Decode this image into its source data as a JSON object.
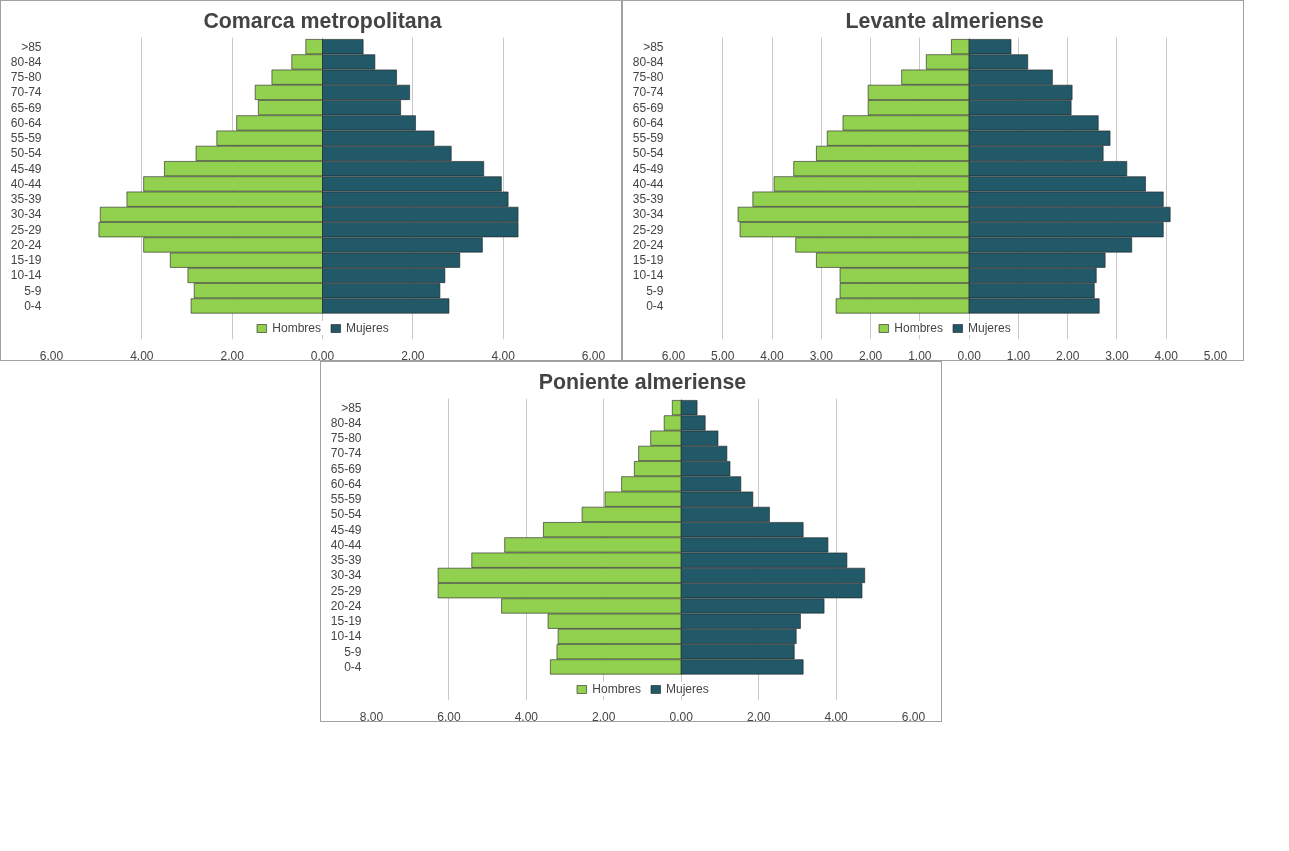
{
  "chart_data": [
    {
      "type": "bar",
      "orientation": "horizontal",
      "title": "Comarca metropolitana",
      "categories": [
        ">85",
        "80-84",
        "75-80",
        "70-74",
        "65-69",
        "60-64",
        "55-59",
        "50-54",
        "45-49",
        "40-44",
        "35-39",
        "30-34",
        "25-29",
        "20-24",
        "15-19",
        "10-14",
        "5-9",
        "0-4"
      ],
      "series": [
        {
          "name": "Hombres",
          "color": "#92d050",
          "values": [
            -0.37,
            -0.68,
            -1.12,
            -1.49,
            -1.42,
            -1.9,
            -2.34,
            -2.8,
            -3.5,
            -3.96,
            -4.33,
            -4.92,
            -4.95,
            -3.96,
            -3.37,
            -2.98,
            -2.84,
            -2.91
          ]
        },
        {
          "name": "Mujeres",
          "color": "#215968",
          "values": [
            0.9,
            1.16,
            1.64,
            1.93,
            1.73,
            2.06,
            2.47,
            2.85,
            3.57,
            3.96,
            4.11,
            4.33,
            4.33,
            3.54,
            3.04,
            2.71,
            2.6,
            2.8
          ]
        }
      ],
      "xlim": [
        -6,
        6
      ],
      "stacked": true,
      "xticks": [
        {
          "value": -6,
          "label": "6,00"
        },
        {
          "value": -4,
          "label": "4,00"
        },
        {
          "value": -2,
          "label": "2,00"
        },
        {
          "value": 0,
          "label": "0,00"
        },
        {
          "value": 2,
          "label": "2,00"
        },
        {
          "value": 4,
          "label": "4,00"
        },
        {
          "value": 6,
          "label": "6,00"
        }
      ],
      "grid": "x",
      "legend": "bottom"
    },
    {
      "type": "bar",
      "orientation": "horizontal",
      "title": "Levante almeriense",
      "categories": [
        ">85",
        "80-84",
        "75-80",
        "70-74",
        "65-69",
        "60-64",
        "55-59",
        "50-54",
        "45-49",
        "40-44",
        "35-39",
        "30-34",
        "25-29",
        "20-24",
        "15-19",
        "10-14",
        "5-9",
        "0-4"
      ],
      "series": [
        {
          "name": "Hombres",
          "color": "#92d050",
          "values": [
            -0.36,
            -0.87,
            -1.37,
            -2.05,
            -2.05,
            -2.56,
            -2.88,
            -3.1,
            -3.56,
            -3.96,
            -4.39,
            -4.69,
            -4.65,
            -3.52,
            -3.1,
            -2.62,
            -2.62,
            -2.7
          ]
        },
        {
          "name": "Mujeres",
          "color": "#215968",
          "values": [
            0.85,
            1.19,
            1.69,
            2.09,
            2.07,
            2.62,
            2.86,
            2.72,
            3.2,
            3.58,
            3.94,
            4.08,
            3.94,
            3.3,
            2.76,
            2.58,
            2.54,
            2.64
          ]
        }
      ],
      "xlim": [
        -6,
        5
      ],
      "stacked": true,
      "xticks": [
        {
          "value": -6,
          "label": "6,00"
        },
        {
          "value": -5,
          "label": "5,00"
        },
        {
          "value": -4,
          "label": "4,00"
        },
        {
          "value": -3,
          "label": "3,00"
        },
        {
          "value": -2,
          "label": "2,00"
        },
        {
          "value": -1,
          "label": "1,00"
        },
        {
          "value": 0,
          "label": "0,00"
        },
        {
          "value": 1,
          "label": "1,00"
        },
        {
          "value": 2,
          "label": "2,00"
        },
        {
          "value": 3,
          "label": "3,00"
        },
        {
          "value": 4,
          "label": "4,00"
        },
        {
          "value": 5,
          "label": "5,00"
        }
      ],
      "grid": "x",
      "legend": "bottom"
    },
    {
      "type": "bar",
      "orientation": "horizontal",
      "title": "Poniente almeriense",
      "categories": [
        ">85",
        "80-84",
        "75-80",
        "70-74",
        "65-69",
        "60-64",
        "55-59",
        "50-54",
        "45-49",
        "40-44",
        "35-39",
        "30-34",
        "25-29",
        "20-24",
        "15-19",
        "10-14",
        "5-9",
        "0-4"
      ],
      "series": [
        {
          "name": "Hombres",
          "color": "#92d050",
          "values": [
            -0.23,
            -0.44,
            -0.79,
            -1.1,
            -1.21,
            -1.54,
            -1.97,
            -2.56,
            -3.56,
            -4.56,
            -5.41,
            -6.28,
            -6.28,
            -4.64,
            -3.44,
            -3.18,
            -3.21,
            -3.38
          ]
        },
        {
          "name": "Mujeres",
          "color": "#215968",
          "values": [
            0.41,
            0.62,
            0.95,
            1.18,
            1.26,
            1.54,
            1.85,
            2.28,
            3.15,
            3.79,
            4.28,
            4.74,
            4.67,
            3.69,
            3.08,
            2.97,
            2.92,
            3.15
          ]
        }
      ],
      "xlim": [
        -8,
        6
      ],
      "stacked": true,
      "xticks": [
        {
          "value": -8,
          "label": "8,00"
        },
        {
          "value": -6,
          "label": "6,00"
        },
        {
          "value": -4,
          "label": "4,00"
        },
        {
          "value": -2,
          "label": "2,00"
        },
        {
          "value": 0,
          "label": "0,00"
        },
        {
          "value": 2,
          "label": "2,00"
        },
        {
          "value": 4,
          "label": "4,00"
        },
        {
          "value": 6,
          "label": "6,00"
        }
      ],
      "grid": "x",
      "legend": "bottom"
    }
  ]
}
